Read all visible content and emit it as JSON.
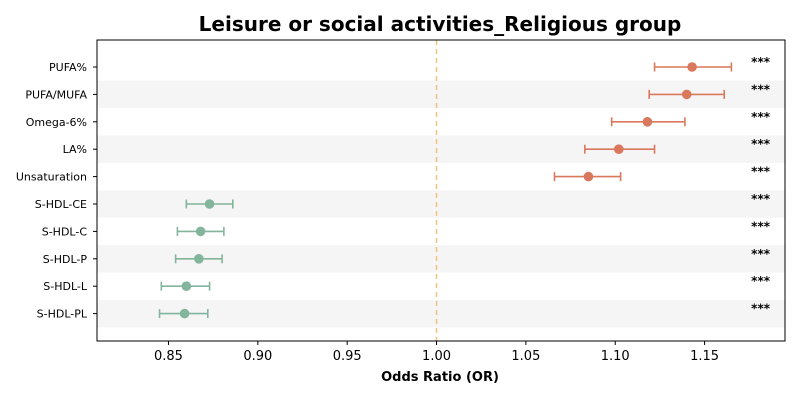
{
  "chart_data": {
    "type": "forest",
    "title": "Leisure or social activities_Religious group",
    "xlabel": "Odds Ratio (OR)",
    "xlim": [
      0.81,
      1.195
    ],
    "xticks": [
      0.85,
      0.9,
      0.95,
      1.0,
      1.05,
      1.1,
      1.15
    ],
    "xtick_labels": [
      "0.85",
      "0.90",
      "0.95",
      "1.00",
      "1.05",
      "1.10",
      "1.15"
    ],
    "reference_line": 1.0,
    "reference_line_style": "dashed",
    "grid": false,
    "row_banding": true,
    "colors": {
      "positive": "#d9785c",
      "negative": "#82b59b",
      "reference": "#f0c27f",
      "band": "#f5f5f5"
    },
    "rows": [
      {
        "label": "PUFA%",
        "or": 1.143,
        "ci_low": 1.122,
        "ci_high": 1.165,
        "sig": "***"
      },
      {
        "label": "PUFA/MUFA",
        "or": 1.14,
        "ci_low": 1.119,
        "ci_high": 1.161,
        "sig": "***"
      },
      {
        "label": "Omega-6%",
        "or": 1.118,
        "ci_low": 1.098,
        "ci_high": 1.139,
        "sig": "***"
      },
      {
        "label": "LA%",
        "or": 1.102,
        "ci_low": 1.083,
        "ci_high": 1.122,
        "sig": "***"
      },
      {
        "label": "Unsaturation",
        "or": 1.085,
        "ci_low": 1.066,
        "ci_high": 1.103,
        "sig": "***"
      },
      {
        "label": "S-HDL-CE",
        "or": 0.873,
        "ci_low": 0.86,
        "ci_high": 0.886,
        "sig": "***"
      },
      {
        "label": "S-HDL-C",
        "or": 0.868,
        "ci_low": 0.855,
        "ci_high": 0.881,
        "sig": "***"
      },
      {
        "label": "S-HDL-P",
        "or": 0.867,
        "ci_low": 0.854,
        "ci_high": 0.88,
        "sig": "***"
      },
      {
        "label": "S-HDL-L",
        "or": 0.86,
        "ci_low": 0.846,
        "ci_high": 0.873,
        "sig": "***"
      },
      {
        "label": "S-HDL-PL",
        "or": 0.859,
        "ci_low": 0.845,
        "ci_high": 0.872,
        "sig": "***"
      }
    ]
  }
}
